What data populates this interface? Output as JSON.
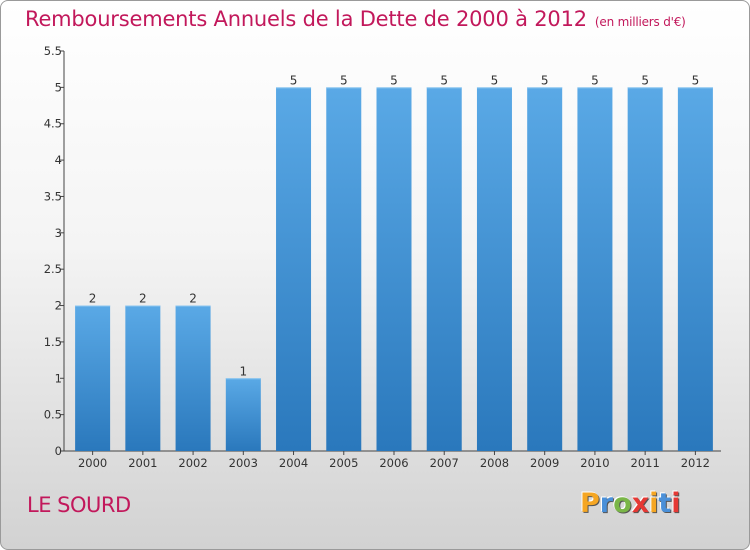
{
  "title": "Remboursements Annuels de la Dette de 2000 à 2012",
  "subtitle": "(en milliers d'€)",
  "commune": "LE SOURD",
  "logo": {
    "letters": [
      "P",
      "r",
      "o",
      "x",
      "i",
      "t",
      "i"
    ],
    "colors": [
      "#f5a623",
      "#4a90d9",
      "#7ab648",
      "#e53935",
      "#f5a623",
      "#4a90d9",
      "#e53935"
    ]
  },
  "chart_data": {
    "type": "bar",
    "categories": [
      "2000",
      "2001",
      "2002",
      "2003",
      "2004",
      "2005",
      "2006",
      "2007",
      "2008",
      "2009",
      "2010",
      "2011",
      "2012"
    ],
    "values": [
      2,
      2,
      2,
      1,
      5,
      5,
      5,
      5,
      5,
      5,
      5,
      5,
      5
    ],
    "data_labels": [
      "2",
      "2",
      "2",
      "1",
      "5",
      "5",
      "5",
      "5",
      "5",
      "5",
      "5",
      "5",
      "5"
    ],
    "ylim": [
      0,
      5.5
    ],
    "yticks": [
      0,
      0.5,
      1,
      1.5,
      2,
      2.5,
      3,
      3.5,
      4,
      4.5,
      5,
      5.5
    ],
    "ytick_labels": [
      "0",
      "0.5",
      "1",
      "1.5",
      "2",
      "2.5",
      "3",
      "3.5",
      "4",
      "4.5",
      "5",
      "5.5"
    ],
    "bar_color_light": "#5aa9e6",
    "bar_color_dark": "#2a78bc",
    "grid": false
  }
}
